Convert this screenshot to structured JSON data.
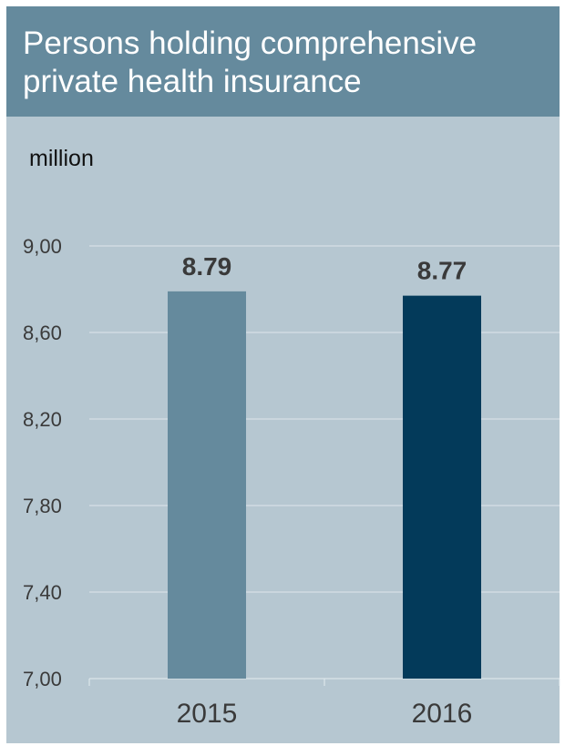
{
  "header": {
    "title_line1": "Persons holding comprehensive",
    "title_line2": "private health insurance"
  },
  "chart_data": {
    "type": "bar",
    "title": "Persons holding comprehensive private health insurance",
    "ylabel": "million",
    "categories": [
      "2015",
      "2016"
    ],
    "values": [
      8.79,
      8.77
    ],
    "value_labels": [
      "8.79",
      "8.77"
    ],
    "bar_colors": [
      "#658a9d",
      "#033a5a"
    ],
    "ylim": [
      7.0,
      9.0
    ],
    "yticks": [
      7.0,
      7.4,
      7.8,
      8.2,
      8.6,
      9.0
    ],
    "ytick_labels": [
      "7,00",
      "7,40",
      "7,80",
      "8,20",
      "8,60",
      "9,00"
    ],
    "grid": true,
    "legend": "none"
  },
  "colors": {
    "background": "#b6c7d1",
    "header": "#658a9d",
    "gridline": "#dde6eb",
    "label_text": "#3a3a3a"
  }
}
